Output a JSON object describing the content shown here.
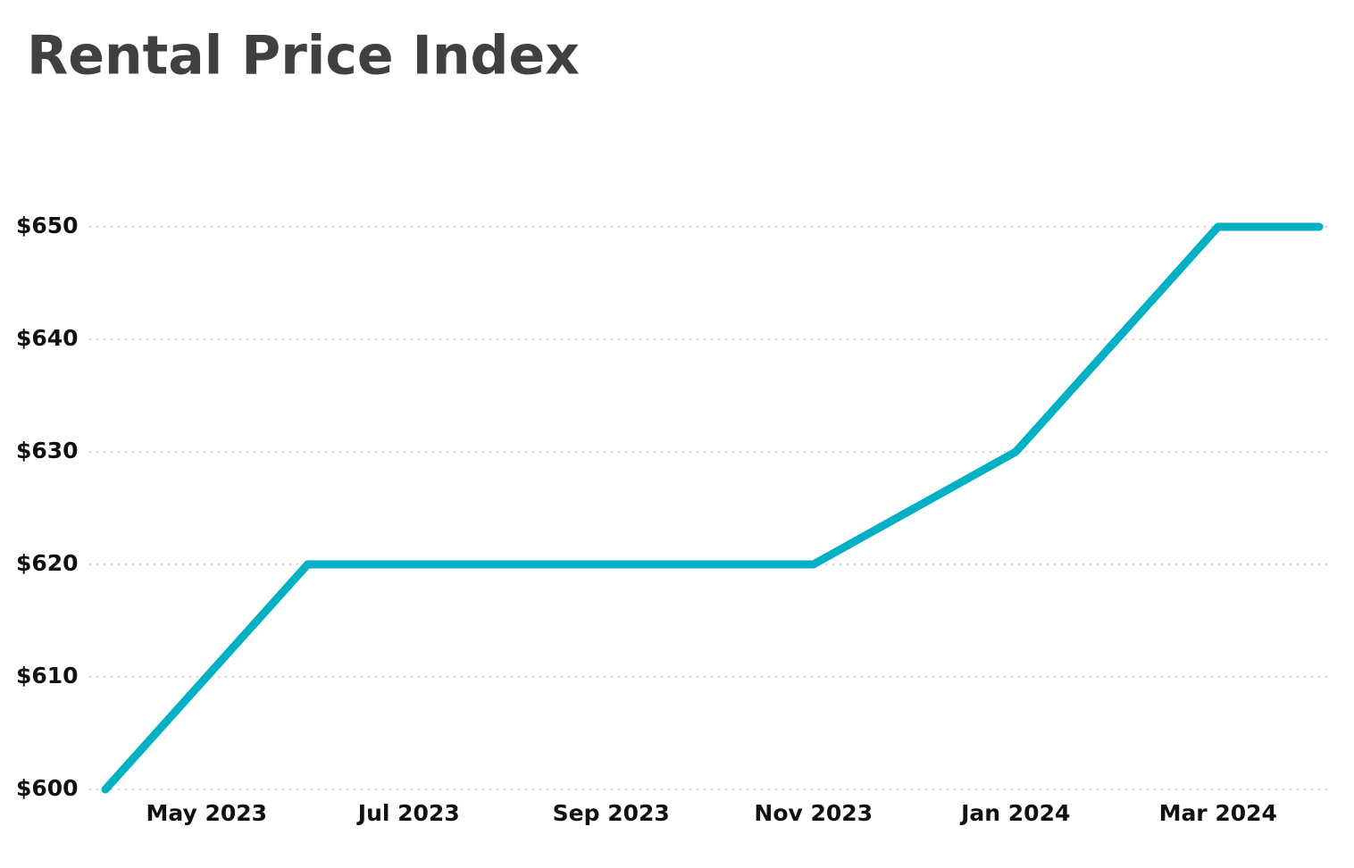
{
  "chart_data": {
    "type": "line",
    "title": "Rental Price Index",
    "categories": [
      null,
      "May 2023",
      null,
      "Jul 2023",
      null,
      "Sep 2023",
      null,
      "Nov 2023",
      null,
      "Jan 2024",
      null,
      "Mar 2024",
      null
    ],
    "series": [
      {
        "color": "#00b0c4",
        "values": [
          600,
          610,
          620,
          620,
          620,
          620,
          620,
          620,
          625,
          630,
          640,
          650,
          650
        ]
      }
    ],
    "ylim": [
      600,
      650
    ],
    "yticks": [
      {
        "value": 600,
        "label": "$600"
      },
      {
        "value": 610,
        "label": "$610"
      },
      {
        "value": 620,
        "label": "$620"
      },
      {
        "value": 630,
        "label": "$630"
      },
      {
        "value": 640,
        "label": "$640"
      },
      {
        "value": 650,
        "label": "$650"
      }
    ],
    "grid": true
  }
}
